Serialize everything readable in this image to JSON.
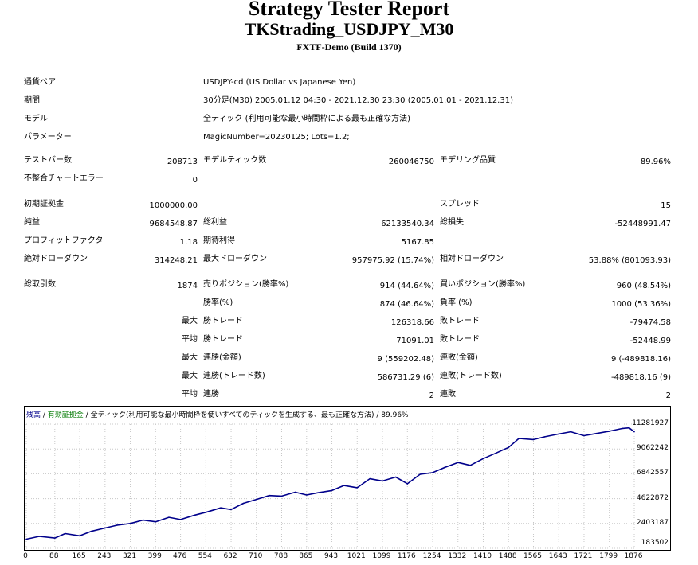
{
  "header": {
    "title": "Strategy Tester Report",
    "subtitle": "TKStrading_USDJPY_M30",
    "server": "FXTF-Demo (Build 1370)"
  },
  "settings": {
    "symbol_label": "通貨ペア",
    "symbol_value": "USDJPY-cd (US Dollar vs Japanese Yen)",
    "period_label": "期間",
    "period_value": "30分足(M30) 2005.01.12 04:30 - 2021.12.30 23:30 (2005.01.01 - 2021.12.31)",
    "model_label": "モデル",
    "model_value": "全ティック (利用可能な最小時間枠による最も正確な方法)",
    "params_label": "パラメーター",
    "params_value": "MagicNumber=20230125; Lots=1.2;"
  },
  "stats": {
    "bars_label": "テストバー数",
    "bars_value": "208713",
    "ticks_label": "モデルティック数",
    "ticks_value": "260046750",
    "quality_label": "モデリング品質",
    "quality_value": "89.96%",
    "mismatch_label": "不整合チャートエラー",
    "mismatch_value": "0",
    "deposit_label": "初期証拠金",
    "deposit_value": "1000000.00",
    "spread_label": "スプレッド",
    "spread_value": "15",
    "net_label": "純益",
    "net_value": "9684548.87",
    "gross_profit_label": "総利益",
    "gross_profit_value": "62133540.34",
    "gross_loss_label": "総損失",
    "gross_loss_value": "-52448991.47",
    "pf_label": "プロフィットファクタ",
    "pf_value": "1.18",
    "expected_label": "期待利得",
    "expected_value": "5167.85",
    "abs_dd_label": "絶対ドローダウン",
    "abs_dd_value": "314248.21",
    "max_dd_label": "最大ドローダウン",
    "max_dd_value": "957975.92 (15.74%)",
    "rel_dd_label": "相対ドローダウン",
    "rel_dd_value": "53.88% (801093.93)",
    "trades_label": "総取引数",
    "trades_value": "1874",
    "short_label": "売りポジション(勝率%)",
    "short_value": "914 (44.64%)",
    "long_label": "買いポジション(勝率%)",
    "long_value": "960 (48.54%)",
    "win_rate_label": "勝率(%)",
    "win_rate_value": "874 (46.64%)",
    "loss_rate_label": "負率 (%)",
    "loss_rate_value": "1000 (53.36%)",
    "max_label": "最大",
    "avg_label": "平均",
    "largest_win_label": "勝トレード",
    "largest_win_value": "126318.66",
    "largest_loss_label": "敗トレード",
    "largest_loss_value": "-79474.58",
    "avg_win_label": "勝トレード",
    "avg_win_value": "71091.01",
    "avg_loss_label": "敗トレード",
    "avg_loss_value": "-52448.99",
    "max_consec_win_label": "連勝(金額)",
    "max_consec_win_value": "9 (559202.48)",
    "max_consec_loss_label": "連敗(金額)",
    "max_consec_loss_value": "9 (-489818.16)",
    "max_consec_profit_label": "連勝(トレード数)",
    "max_consec_profit_value": "586731.29 (6)",
    "max_consec_lossamt_label": "連敗(トレード数)",
    "max_consec_lossamt_value": "-489818.16 (9)",
    "avg_consec_win_label": "連勝",
    "avg_consec_win_value": "2",
    "avg_consec_loss_label": "連敗",
    "avg_consec_loss_value": "2"
  },
  "chart_legend": {
    "balance": "残高",
    "sep1": " / ",
    "equity": "有効証拠金",
    "sep2": " / ",
    "model": "全ティック(利用可能な最小時間枠を使いすべてのティックを生成する、最も正確な方法)",
    "quality": " / 89.96%"
  },
  "colors": {
    "balance_line": "#00008b",
    "equity_label": "#007a00",
    "grid": "#c8c8c8"
  },
  "chart_data": {
    "type": "line",
    "title": "",
    "xlabel": "",
    "ylabel": "",
    "x_ticks": [
      "0",
      "88",
      "165",
      "243",
      "321",
      "399",
      "476",
      "554",
      "632",
      "710",
      "788",
      "865",
      "943",
      "1021",
      "1099",
      "1176",
      "1254",
      "1332",
      "1410",
      "1488",
      "1565",
      "1643",
      "1721",
      "1799",
      "1876"
    ],
    "y_ticks": [
      "11281927",
      "9062242",
      "6842557",
      "4622872",
      "2403187",
      "183502"
    ],
    "ylim": [
      183502,
      11281927
    ],
    "xlim": [
      0,
      1876
    ],
    "grid": true,
    "series": [
      {
        "x": [
          0,
          40,
          88,
          120,
          165,
          200,
          243,
          280,
          321,
          360,
          399,
          440,
          476,
          520,
          554,
          600,
          632,
          670,
          710,
          750,
          788,
          830,
          865,
          900,
          943,
          980,
          1021,
          1060,
          1099,
          1140,
          1176,
          1215,
          1254,
          1290,
          1332,
          1370,
          1410,
          1450,
          1488,
          1520,
          1565,
          1600,
          1643,
          1680,
          1721,
          1760,
          1799,
          1840,
          1860,
          1876
        ],
        "values": [
          1000000,
          1250000,
          1100000,
          1500000,
          1300000,
          1700000,
          2000000,
          2250000,
          2400000,
          2700000,
          2550000,
          2950000,
          2750000,
          3150000,
          3400000,
          3800000,
          3650000,
          4200000,
          4550000,
          4900000,
          4850000,
          5200000,
          4950000,
          5150000,
          5350000,
          5800000,
          5600000,
          6400000,
          6200000,
          6550000,
          5950000,
          6800000,
          6950000,
          7400000,
          7850000,
          7600000,
          8200000,
          8700000,
          9200000,
          10000000,
          9900000,
          10150000,
          10400000,
          10600000,
          10250000,
          10450000,
          10650000,
          10900000,
          10950000,
          10600000
        ]
      }
    ]
  }
}
